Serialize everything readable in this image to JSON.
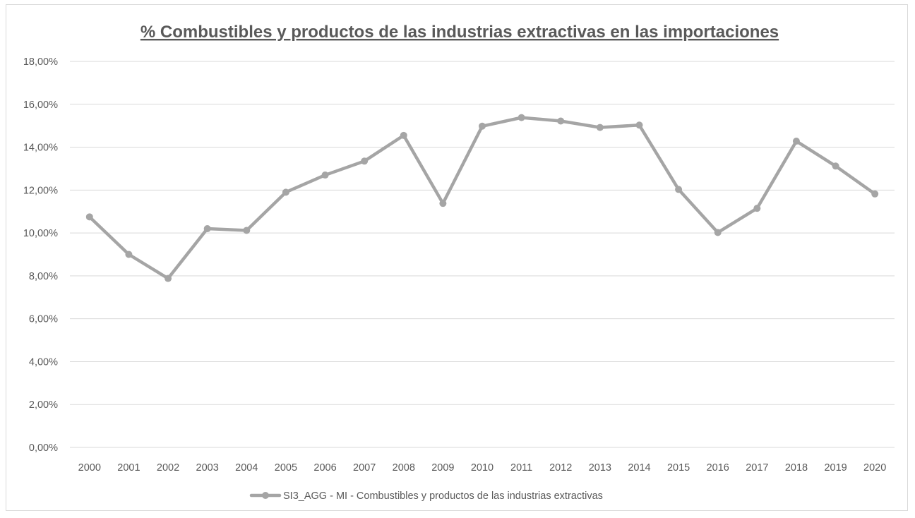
{
  "chart_data": {
    "type": "line",
    "title": "% Combustibles y productos de las industrias extractivas en las importaciones",
    "xlabel": "",
    "ylabel": "",
    "categories": [
      "2000",
      "2001",
      "2002",
      "2003",
      "2004",
      "2005",
      "2006",
      "2007",
      "2008",
      "2009",
      "2010",
      "2011",
      "2012",
      "2013",
      "2014",
      "2015",
      "2016",
      "2017",
      "2018",
      "2019",
      "2020"
    ],
    "series": [
      {
        "name": "SI3_AGG - MI - Combustibles y productos de las industrias extractivas",
        "values": [
          10.75,
          9.0,
          7.88,
          10.2,
          10.12,
          11.9,
          12.7,
          13.35,
          14.55,
          11.38,
          14.98,
          15.38,
          15.22,
          14.92,
          15.03,
          12.03,
          10.02,
          11.15,
          14.28,
          13.12,
          11.82
        ]
      }
    ],
    "y_ticks": [
      "0,00%",
      "2,00%",
      "4,00%",
      "6,00%",
      "8,00%",
      "10,00%",
      "12,00%",
      "14,00%",
      "16,00%",
      "18,00%"
    ],
    "ylim": [
      0,
      18
    ],
    "grid": true,
    "legend_position": "bottom",
    "colors": {
      "series": "#a5a5a5",
      "grid": "#d9d9d9",
      "text": "#595959",
      "frame": "#d9d9d9"
    }
  }
}
